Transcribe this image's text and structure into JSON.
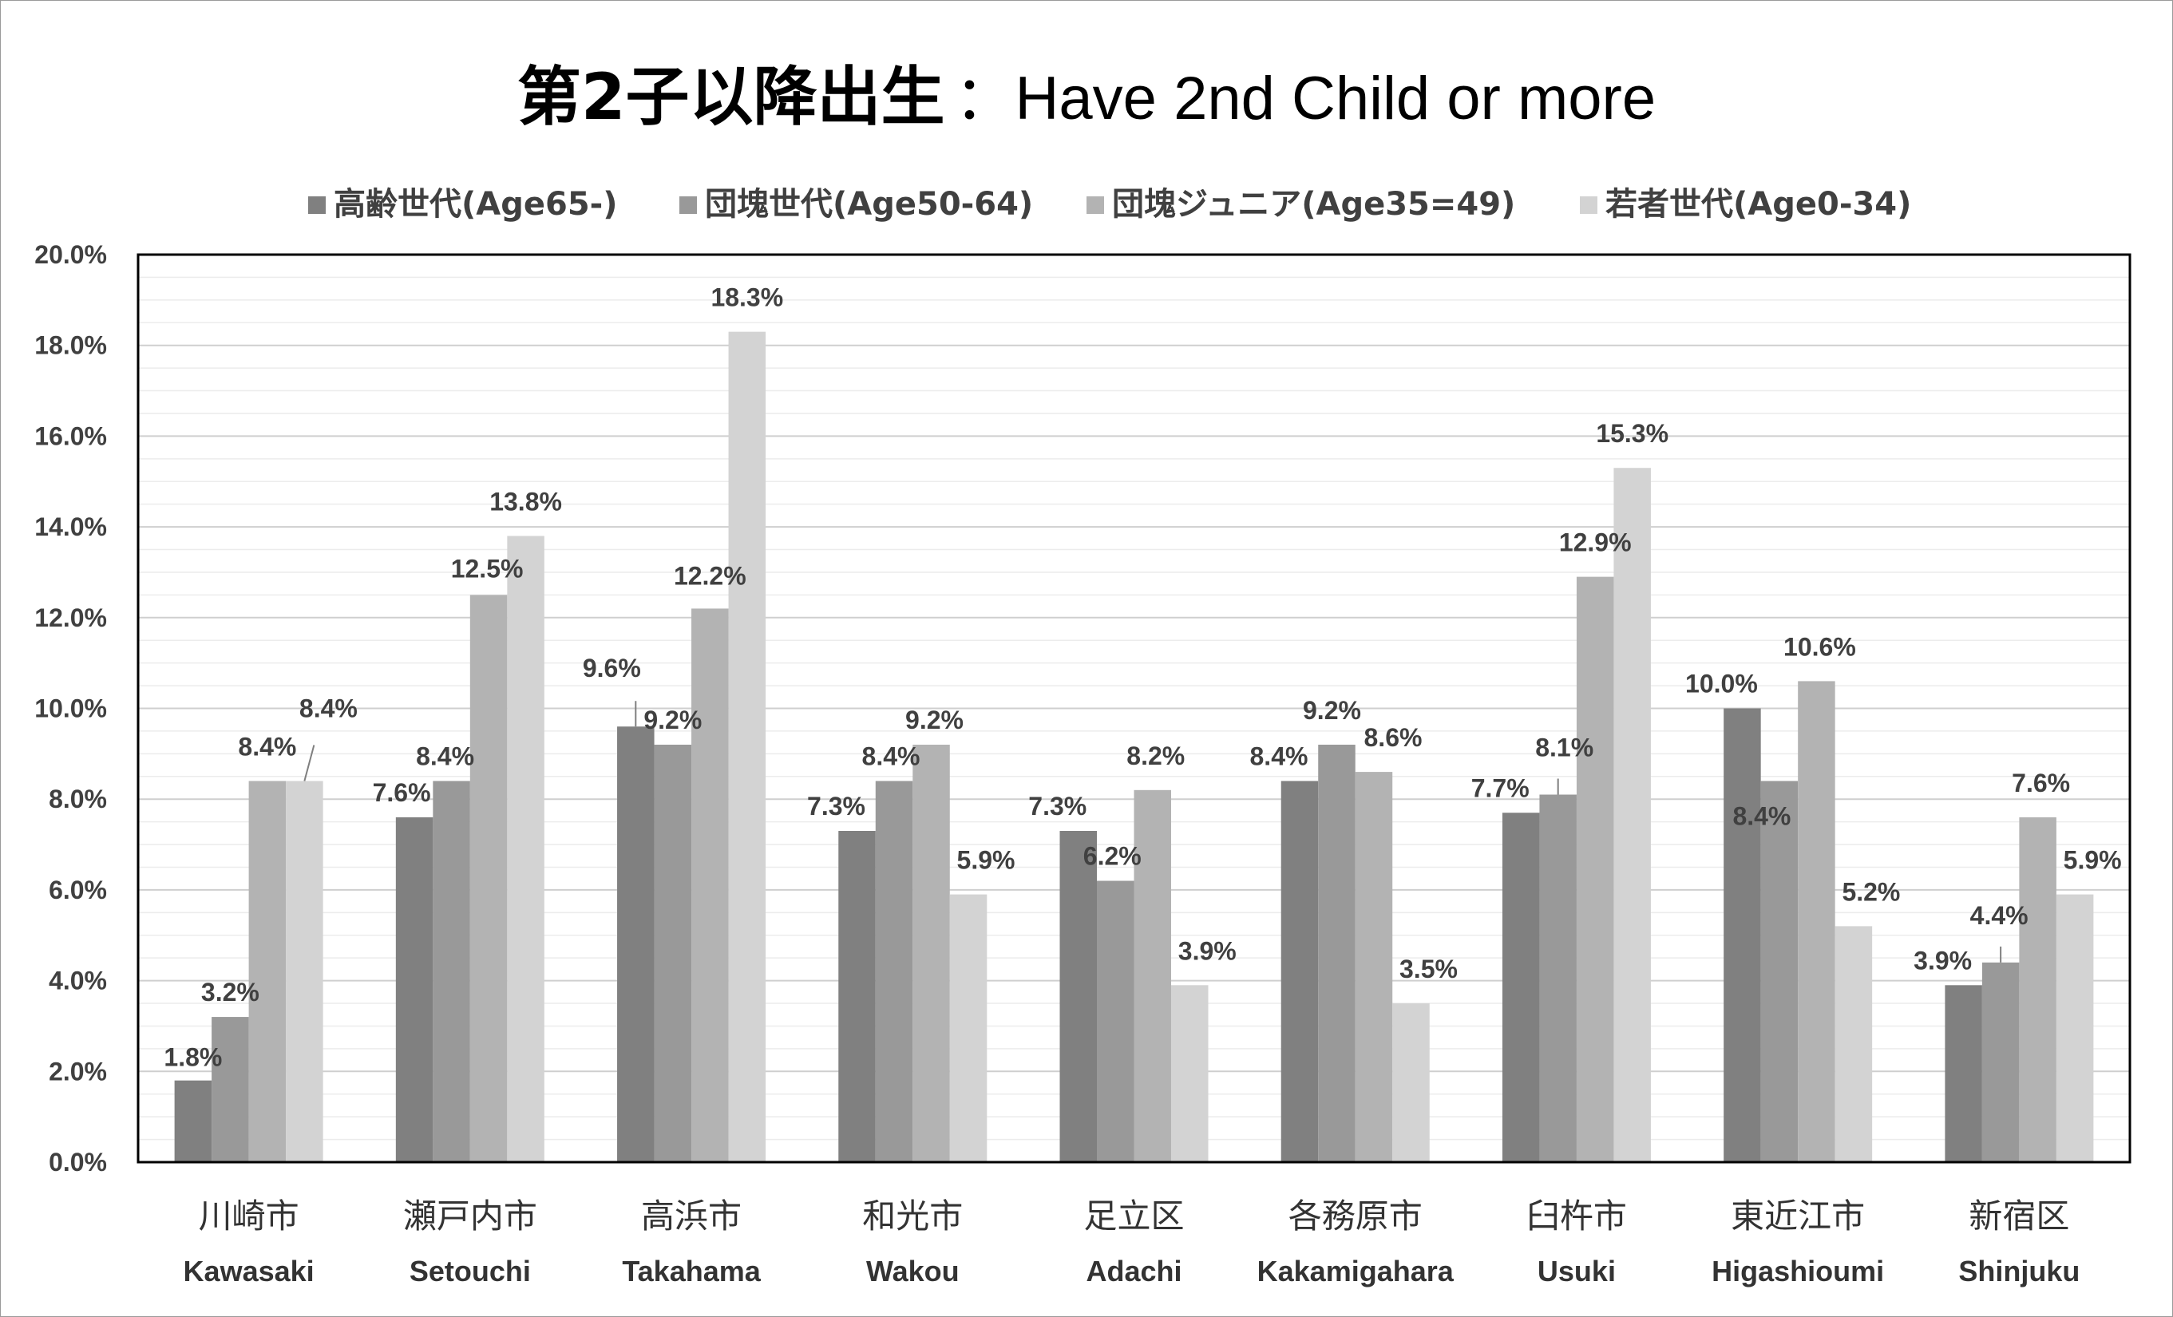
{
  "chart_data": {
    "type": "bar",
    "title": "第2子以降出生",
    "subtitle": "：Have 2nd Child or more",
    "categories": [
      "川崎市",
      "瀬戸内市",
      "高浜市",
      "和光市",
      "足立区",
      "各務原市",
      "臼杵市",
      "東近江市",
      "新宿区"
    ],
    "categories_en": [
      "Kawasaki",
      "Setouchi",
      "Takahama",
      "Wakou",
      "Adachi",
      "Kakamigahara",
      "Usuki",
      "Higashioumi",
      "Shinjuku"
    ],
    "series": [
      {
        "name": "高齢世代(Age65-)",
        "color": "#808080",
        "values": [
          1.8,
          7.6,
          9.6,
          7.3,
          7.3,
          8.4,
          7.7,
          10.0,
          3.9
        ]
      },
      {
        "name": "団塊世代(Age50-64)",
        "color": "#999999",
        "values": [
          3.2,
          8.4,
          9.2,
          8.4,
          6.2,
          9.2,
          8.1,
          8.4,
          4.4
        ]
      },
      {
        "name": "団塊ジュニア(Age35=49)",
        "color": "#b3b3b3",
        "values": [
          8.4,
          12.5,
          12.2,
          9.2,
          8.2,
          8.6,
          12.9,
          10.6,
          7.6
        ]
      },
      {
        "name": "若者世代(Age0-34)",
        "color": "#d3d3d3",
        "values": [
          8.4,
          13.8,
          18.3,
          5.9,
          3.9,
          3.5,
          15.3,
          5.2,
          5.9
        ]
      }
    ],
    "data_labels": [
      [
        "1.8%",
        "7.6%",
        "9.6%",
        "7.3%",
        "7.3%",
        "8.4%",
        "7.7%",
        "10.0%",
        "3.9%"
      ],
      [
        "3.2%",
        "8.4%",
        "9.2%",
        "8.4%",
        "6.2%",
        "9.2%",
        "8.1%",
        "8.4%",
        "4.4%"
      ],
      [
        "8.4%",
        "12.5%",
        "12.2%",
        "9.2%",
        "8.2%",
        "8.6%",
        "12.9%",
        "10.6%",
        "7.6%"
      ],
      [
        "8.4%",
        "13.8%",
        "18.3%",
        "5.9%",
        "3.9%",
        "3.5%",
        "15.3%",
        "5.2%",
        "5.9%"
      ]
    ],
    "y_ticks": [
      "0.0%",
      "2.0%",
      "4.0%",
      "6.0%",
      "8.0%",
      "10.0%",
      "12.0%",
      "14.0%",
      "16.0%",
      "18.0%",
      "20.0%"
    ],
    "ylim": [
      0,
      20
    ],
    "y_unit": "%",
    "grid": true,
    "legend_position": "top"
  }
}
